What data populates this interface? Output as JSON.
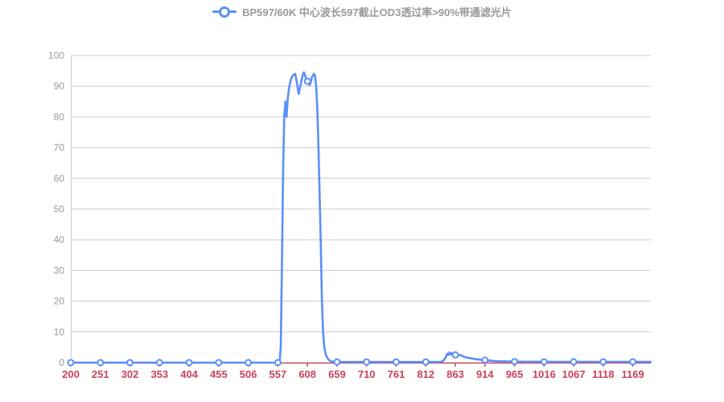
{
  "page": {
    "background": "#ffffff"
  },
  "legend": {
    "label": "BP597/60K 中心波长597截止OD3透过率>90%带通滤光片",
    "marker_icon": "line-circle-icon",
    "text_color": "#999999"
  },
  "style": {
    "line_color": "#5b8ff9",
    "marker_fill": "#ffffff",
    "grid_color": "#cccccc",
    "y_label_color": "#999999",
    "x_axis_color": "#c9435a",
    "x_label_color": "#c9435a"
  },
  "chart_data": {
    "type": "line",
    "title": "",
    "xlabel": "",
    "ylabel": "",
    "grid": true,
    "legend_position": "top-center",
    "x_axis": {
      "range": [
        200,
        1200
      ],
      "tick_step_nm": 51,
      "tick_labels": [
        "200",
        "251",
        "302",
        "353",
        "404",
        "455",
        "506",
        "557",
        "608",
        "659",
        "710",
        "761",
        "812",
        "863",
        "914",
        "965",
        "1016",
        "1067",
        "1118",
        "1169"
      ]
    },
    "y_axis": {
      "range": [
        0,
        100
      ],
      "ticks": [
        0,
        10,
        20,
        30,
        40,
        50,
        60,
        70,
        80,
        90,
        100
      ]
    },
    "series": [
      {
        "name": "BP597/60K 中心波长597截止OD3透过率>90%带通滤光片",
        "color": "#5b8ff9",
        "marker": {
          "shape": "circle",
          "fill": "#ffffff",
          "stroke": "#5b8ff9",
          "radius": 3.5
        },
        "points": [
          [
            200,
            0
          ],
          [
            230,
            0
          ],
          [
            260,
            0
          ],
          [
            290,
            0
          ],
          [
            320,
            0
          ],
          [
            350,
            0
          ],
          [
            380,
            0
          ],
          [
            410,
            0
          ],
          [
            440,
            0
          ],
          [
            470,
            0
          ],
          [
            500,
            0
          ],
          [
            520,
            0
          ],
          [
            540,
            0
          ],
          [
            550,
            0
          ],
          [
            557,
            0
          ],
          [
            560,
            0.2
          ],
          [
            562,
            5
          ],
          [
            564,
            30
          ],
          [
            566,
            62
          ],
          [
            568,
            80
          ],
          [
            570,
            85
          ],
          [
            572,
            80
          ],
          [
            574,
            86
          ],
          [
            576,
            89
          ],
          [
            578,
            91
          ],
          [
            580,
            92.5
          ],
          [
            583,
            93.5
          ],
          [
            587,
            94
          ],
          [
            590,
            91
          ],
          [
            592,
            88.5
          ],
          [
            593,
            87.5
          ],
          [
            595,
            89.5
          ],
          [
            598,
            92
          ],
          [
            600,
            93.8
          ],
          [
            602,
            94.5
          ],
          [
            604,
            93.5
          ],
          [
            606,
            92.2
          ],
          [
            608,
            91.6
          ],
          [
            610,
            90.8
          ],
          [
            612,
            90.4
          ],
          [
            614,
            91.5
          ],
          [
            616,
            93
          ],
          [
            619,
            94
          ],
          [
            621,
            93.5
          ],
          [
            623,
            90
          ],
          [
            625,
            83
          ],
          [
            627,
            70
          ],
          [
            629,
            55
          ],
          [
            631,
            38
          ],
          [
            633,
            20
          ],
          [
            635,
            10
          ],
          [
            637,
            5
          ],
          [
            640,
            2.5
          ],
          [
            643,
            1.3
          ],
          [
            646,
            0.7
          ],
          [
            650,
            0.35
          ],
          [
            655,
            0.25
          ],
          [
            660,
            0.2
          ],
          [
            690,
            0.2
          ],
          [
            720,
            0.2
          ],
          [
            750,
            0.2
          ],
          [
            780,
            0.2
          ],
          [
            810,
            0.2
          ],
          [
            835,
            0.2
          ],
          [
            841,
            0.4
          ],
          [
            844,
            1
          ],
          [
            847,
            2
          ],
          [
            849,
            2.9
          ],
          [
            851,
            2.5
          ],
          [
            853,
            3.3
          ],
          [
            855,
            2.6
          ],
          [
            857,
            3.1
          ],
          [
            859,
            2.7
          ],
          [
            861,
            2.9
          ],
          [
            863,
            2.5
          ],
          [
            865,
            2.7
          ],
          [
            868,
            2.3
          ],
          [
            871,
            2.5
          ],
          [
            875,
            2.2
          ],
          [
            878,
            1.9
          ],
          [
            882,
            1.7
          ],
          [
            886,
            1.5
          ],
          [
            890,
            1.4
          ],
          [
            895,
            1.2
          ],
          [
            900,
            1.1
          ],
          [
            907,
            0.95
          ],
          [
            914,
            0.8
          ],
          [
            920,
            0.7
          ],
          [
            928,
            0.55
          ],
          [
            938,
            0.45
          ],
          [
            950,
            0.4
          ],
          [
            965,
            0.35
          ],
          [
            985,
            0.3
          ],
          [
            1010,
            0.28
          ],
          [
            1040,
            0.26
          ],
          [
            1070,
            0.25
          ],
          [
            1100,
            0.25
          ],
          [
            1130,
            0.25
          ],
          [
            1160,
            0.25
          ],
          [
            1185,
            0.25
          ],
          [
            1200,
            0.25
          ]
        ],
        "marker_points": [
          [
            200,
            0
          ],
          [
            251,
            0
          ],
          [
            302,
            0
          ],
          [
            353,
            0
          ],
          [
            404,
            0
          ],
          [
            455,
            0
          ],
          [
            506,
            0
          ],
          [
            557,
            0
          ],
          [
            608,
            91.6
          ],
          [
            659,
            0.2
          ],
          [
            710,
            0.2
          ],
          [
            761,
            0.2
          ],
          [
            812,
            0.2
          ],
          [
            863,
            2.5
          ],
          [
            914,
            0.8
          ],
          [
            965,
            0.35
          ],
          [
            1016,
            0.25
          ],
          [
            1067,
            0.25
          ],
          [
            1118,
            0.25
          ],
          [
            1169,
            0.25
          ]
        ]
      }
    ]
  }
}
